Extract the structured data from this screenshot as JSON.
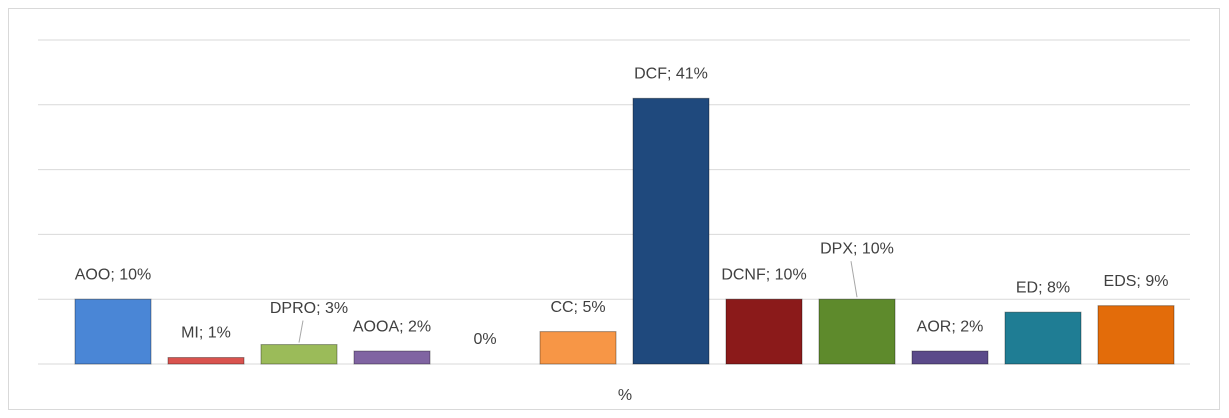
{
  "chart_data": {
    "type": "bar",
    "x_label": "%",
    "categories": [
      "AOO",
      "MI",
      "DPRO",
      "AOOA",
      null,
      "CC",
      "DCF",
      "DCNF",
      "DPX",
      "AOR",
      "ED",
      "EDS"
    ],
    "values": [
      10,
      1,
      3,
      2,
      0,
      5,
      41,
      10,
      10,
      2,
      8,
      9
    ],
    "value_labels": [
      "AOO; 10%",
      "MI; 1%",
      "DPRO; 3%",
      "AOOA; 2%",
      "0%",
      "CC; 5%",
      "DCF; 41%",
      "DCNF; 10%",
      "DPX; 10%",
      "AOR; 2%",
      "ED; 8%",
      "EDS; 9%"
    ],
    "colors": [
      "#4a86d6",
      "#d9534f",
      "#9bbb59",
      "#8064a2",
      "#999999",
      "#f79646",
      "#1f497d",
      "#8b1a1a",
      "#5e8a2c",
      "#5b4a8a",
      "#1f7d94",
      "#e36c0a"
    ],
    "ylim": [
      0,
      50
    ],
    "yticks": [
      0,
      10,
      20,
      30,
      40,
      50
    ],
    "grid": true
  }
}
